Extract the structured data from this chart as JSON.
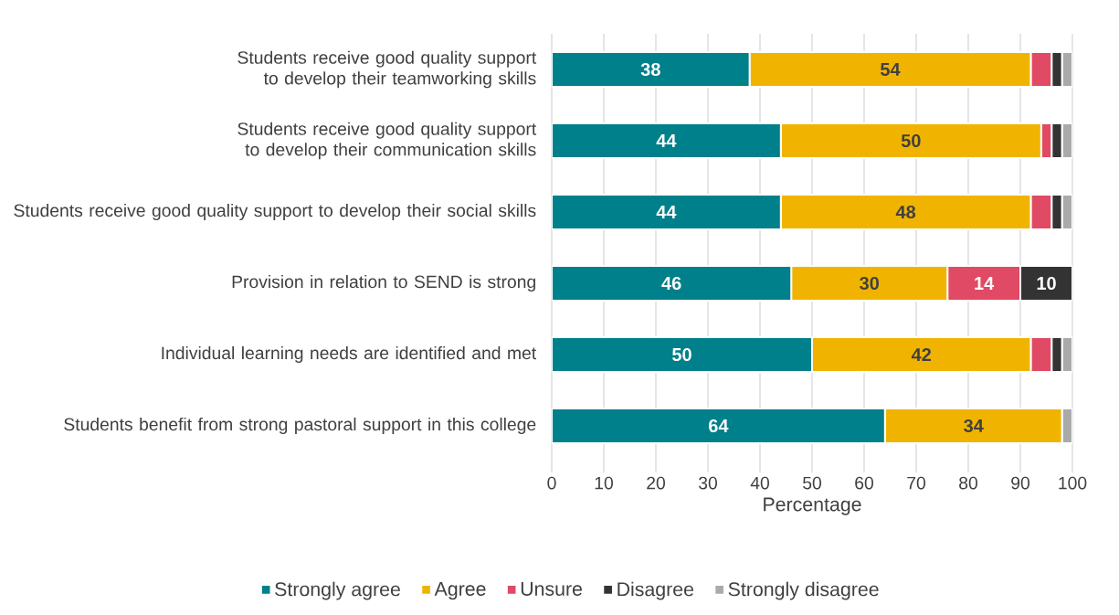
{
  "chart_data": {
    "type": "bar",
    "orientation": "horizontal",
    "stacked": true,
    "categories": [
      "Students receive good quality support to develop their teamworking skills",
      "Students receive good quality support to develop their communication skills",
      "Students receive good quality support to develop their social skills",
      "Provision in relation to SEND is strong",
      "Individual learning needs are identified and met",
      "Students benefit from strong pastoral support in this college"
    ],
    "series": [
      {
        "name": "Strongly agree",
        "color": "#00808a",
        "values": [
          38,
          44,
          44,
          46,
          50,
          64
        ],
        "value_labels": [
          "38",
          "44",
          "44",
          "46",
          "50",
          "64"
        ]
      },
      {
        "name": "Agree",
        "color": "#f0b400",
        "values": [
          54,
          50,
          48,
          30,
          42,
          34
        ],
        "value_labels": [
          "54",
          "50",
          "48",
          "30",
          "42",
          "34"
        ]
      },
      {
        "name": "Unsure",
        "color": "#e04a64",
        "values": [
          4,
          2,
          4,
          14,
          4,
          0
        ],
        "value_labels": [
          null,
          null,
          null,
          "14",
          null,
          null
        ]
      },
      {
        "name": "Disagree",
        "color": "#333333",
        "values": [
          2,
          2,
          2,
          10,
          2,
          0
        ],
        "value_labels": [
          null,
          null,
          null,
          "10",
          null,
          null
        ]
      },
      {
        "name": "Strongly disagree",
        "color": "#aaaaaa",
        "values": [
          2,
          2,
          2,
          0,
          2,
          2
        ],
        "value_labels": [
          null,
          null,
          null,
          null,
          null,
          null
        ]
      }
    ],
    "xlim": [
      0,
      100
    ],
    "xticks": [
      0,
      10,
      20,
      30,
      40,
      50,
      60,
      70,
      80,
      90,
      100
    ],
    "xlabel": "Percentage",
    "grid": "x",
    "legend": "bottom"
  }
}
